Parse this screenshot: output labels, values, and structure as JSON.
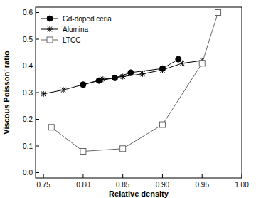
{
  "chart_data": {
    "type": "line",
    "x_label": "Relative density",
    "y_label": "Viscous Poisson' ratio",
    "xlim": [
      0.74,
      1.0
    ],
    "ylim": [
      -0.02,
      0.62
    ],
    "xticks": [
      0.75,
      {
        "value": 0.8,
        "label": "0.80"
      },
      0.85,
      {
        "value": 0.9,
        "label": "0.90"
      },
      0.95,
      {
        "value": 1.0,
        "label": "1.00"
      }
    ],
    "yticks": [
      {
        "value": 0,
        "label": "0.0"
      },
      0.1,
      0.2,
      0.3,
      0.4,
      0.5,
      0.6
    ],
    "legend": "top-left",
    "series": [
      {
        "name": "Gd-doped ceria",
        "color": "#000000",
        "marker": "circle",
        "line_style": "solid",
        "x": [
          0.8,
          0.82,
          0.84,
          0.86,
          0.9,
          0.92
        ],
        "values": [
          0.33,
          0.345,
          0.355,
          0.375,
          0.39,
          0.425
        ]
      },
      {
        "name": "Alumina",
        "color": "#000000",
        "marker": "asterisk",
        "line_style": "solid",
        "x": [
          0.75,
          0.775,
          0.8,
          0.825,
          0.85,
          0.875,
          0.9,
          0.925,
          0.95
        ],
        "values": [
          0.295,
          0.31,
          0.33,
          0.35,
          0.36,
          0.37,
          0.385,
          0.41,
          0.42
        ]
      },
      {
        "name": "LTCC",
        "color": "#666666",
        "marker": "square",
        "line_style": "solid",
        "x": [
          0.76,
          0.8,
          0.85,
          0.9,
          0.95,
          0.97
        ],
        "values": [
          0.17,
          0.08,
          0.09,
          0.18,
          0.41,
          0.6
        ]
      }
    ]
  }
}
